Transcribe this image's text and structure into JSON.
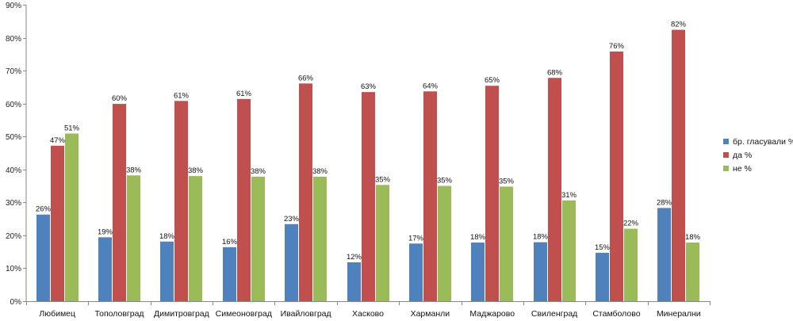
{
  "chart_data": {
    "type": "bar",
    "title": "",
    "xlabel": "",
    "ylabel": "",
    "ylim": [
      0,
      90
    ],
    "y_ticks": [
      0,
      10,
      20,
      30,
      40,
      50,
      60,
      70,
      80,
      90
    ],
    "y_tick_labels": [
      "0%",
      "10%",
      "20%",
      "30%",
      "40%",
      "50%",
      "60%",
      "70%",
      "80%",
      "90%"
    ],
    "grid": false,
    "legend_position": "right",
    "categories": [
      "Любимец",
      "Тополовград",
      "Димитровград",
      "Симеоновград",
      "Ивайловград",
      "Хасково",
      "Харманли",
      "Маджарово",
      "Свиленград",
      "Стамболово",
      "Минерални"
    ],
    "series": [
      {
        "name": "бр. гласували %",
        "color": "#4f81bd",
        "values": [
          26.3,
          19.4,
          18.1,
          16.4,
          23.4,
          11.8,
          17.5,
          17.8,
          17.9,
          14.7,
          28.3
        ],
        "labels": [
          "26%",
          "19%",
          "18%",
          "16%",
          "23%",
          "12%",
          "17%",
          "18%",
          "18%",
          "15%",
          "28%"
        ]
      },
      {
        "name": "да %",
        "color": "#c0504d",
        "values": [
          47.2,
          59.9,
          60.8,
          61.4,
          66.1,
          63.5,
          63.7,
          65.4,
          67.8,
          75.8,
          82.4
        ],
        "labels": [
          "47%",
          "60%",
          "61%",
          "61%",
          "66%",
          "63%",
          "64%",
          "65%",
          "68%",
          "76%",
          "82%"
        ]
      },
      {
        "name": "не %",
        "color": "#9bbb59",
        "values": [
          50.9,
          38.2,
          38.0,
          37.8,
          37.8,
          35.3,
          35.0,
          34.8,
          30.6,
          22.0,
          17.8
        ],
        "labels": [
          "51%",
          "38%",
          "38%",
          "38%",
          "38%",
          "35%",
          "35%",
          "35%",
          "31%",
          "22%",
          "18%"
        ]
      }
    ]
  }
}
